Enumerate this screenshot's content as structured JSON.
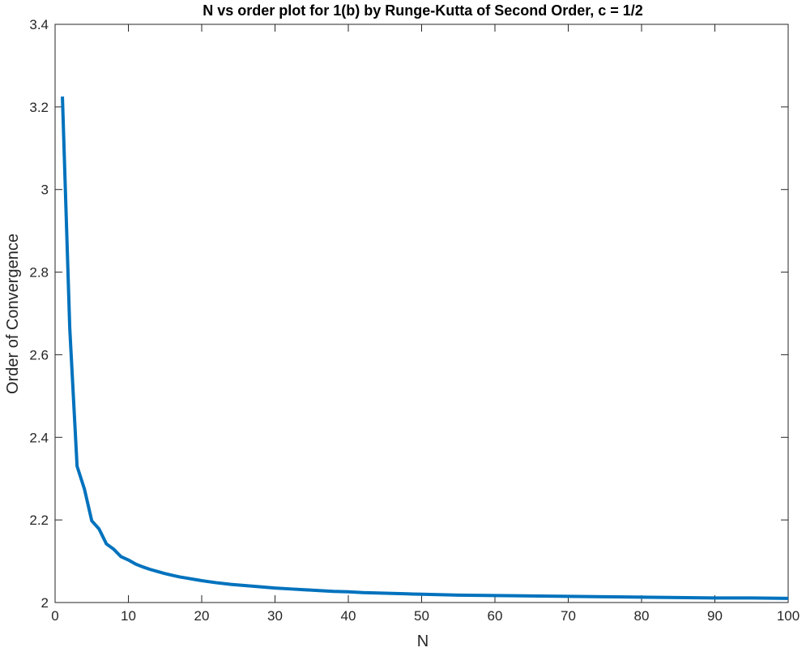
{
  "chart_data": {
    "type": "line",
    "title": "N vs order plot for 1(b) by Runge-Kutta of Second Order, c = 1/2",
    "xlabel": "N",
    "ylabel": "Order of Convergence",
    "xlim": [
      0,
      100
    ],
    "ylim": [
      2,
      3.4
    ],
    "xticks": [
      0,
      10,
      20,
      30,
      40,
      50,
      60,
      70,
      80,
      90,
      100
    ],
    "yticks": [
      2,
      2.2,
      2.4,
      2.6,
      2.8,
      3,
      3.2,
      3.4
    ],
    "xtick_labels": [
      "0",
      "10",
      "20",
      "30",
      "40",
      "50",
      "60",
      "70",
      "80",
      "90",
      "100"
    ],
    "ytick_labels": [
      "2",
      "2.2",
      "2.4",
      "2.6",
      "2.8",
      "3",
      "3.2",
      "3.4"
    ],
    "grid": false,
    "box": true,
    "series": [
      {
        "color": "#0072BD",
        "x": [
          1,
          2,
          3,
          4,
          5,
          6,
          7,
          8,
          9,
          10,
          11,
          12,
          13,
          14,
          15,
          16,
          17,
          18,
          19,
          20,
          22,
          24,
          26,
          28,
          30,
          32,
          34,
          36,
          38,
          40,
          42,
          44,
          46,
          48,
          50,
          55,
          60,
          65,
          70,
          75,
          80,
          85,
          90,
          95,
          100
        ],
        "y": [
          3.225,
          2.665,
          2.33,
          2.275,
          2.198,
          2.178,
          2.142,
          2.129,
          2.111,
          2.103,
          2.093,
          2.086,
          2.08,
          2.075,
          2.07,
          2.066,
          2.062,
          2.059,
          2.056,
          2.053,
          2.048,
          2.044,
          2.041,
          2.038,
          2.035,
          2.033,
          2.031,
          2.029,
          2.027,
          2.026,
          2.024,
          2.023,
          2.022,
          2.021,
          2.02,
          2.018,
          2.017,
          2.016,
          2.015,
          2.014,
          2.013,
          2.012,
          2.011,
          2.011,
          2.01
        ]
      }
    ]
  }
}
